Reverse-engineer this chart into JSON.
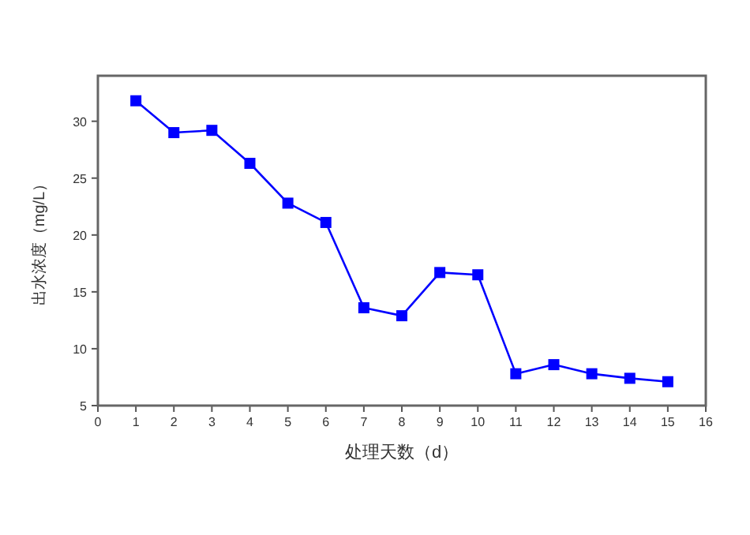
{
  "chart_data": {
    "type": "line",
    "xlabel": "处理天数（d）",
    "ylabel": "出水浓度（mg/L）",
    "x": [
      1,
      2,
      3,
      4,
      5,
      6,
      7,
      8,
      9,
      10,
      11,
      12,
      13,
      14,
      15
    ],
    "series": [
      {
        "color": "#0000ff",
        "values": [
          31.8,
          29.0,
          29.2,
          26.3,
          22.8,
          21.1,
          13.6,
          12.9,
          16.7,
          16.5,
          7.8,
          8.6,
          7.8,
          7.4,
          7.1
        ]
      }
    ],
    "xlim": [
      0,
      16
    ],
    "xticks": [
      0,
      1,
      2,
      3,
      4,
      5,
      6,
      7,
      8,
      9,
      10,
      11,
      12,
      13,
      14,
      15,
      16
    ],
    "ylim": [
      5,
      34
    ],
    "yticks": [
      5,
      10,
      15,
      20,
      25,
      30
    ],
    "marker": "square",
    "line_style": "solid",
    "grid": false
  }
}
